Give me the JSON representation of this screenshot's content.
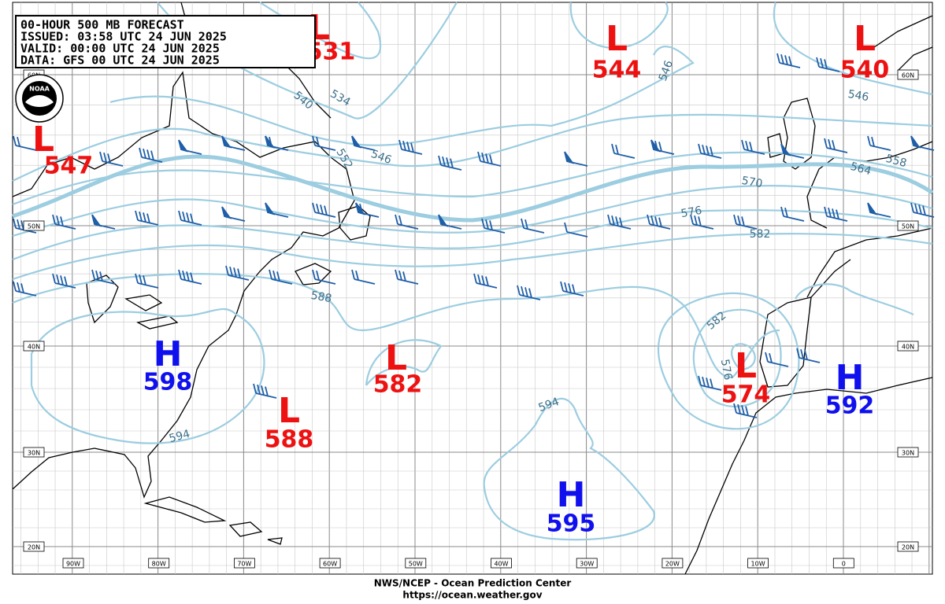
{
  "header": {
    "lines": [
      "00-HOUR 500 MB FORECAST",
      "ISSUED: 03:58 UTC 24 JUN 2025",
      "VALID:  00:00 UTC 24 JUN 2025",
      "DATA:   GFS 00 UTC 24 JUN 2025"
    ]
  },
  "logo": "NOAA",
  "centers": [
    {
      "letter": "L",
      "value": "531"
    },
    {
      "letter": "L",
      "value": "544"
    },
    {
      "letter": "L",
      "value": "540"
    },
    {
      "letter": "L",
      "value": "547"
    },
    {
      "letter": "H",
      "value": "598"
    },
    {
      "letter": "L",
      "value": "582"
    },
    {
      "letter": "L",
      "value": "588"
    },
    {
      "letter": "L",
      "value": "574"
    },
    {
      "letter": "H",
      "value": "592"
    },
    {
      "letter": "H",
      "value": "595"
    }
  ],
  "contour_labels": [
    "534",
    "540",
    "546",
    "552",
    "546",
    "546",
    "558",
    "564",
    "570",
    "576",
    "582",
    "588",
    "582",
    "576",
    "594",
    "594"
  ],
  "lat_labels": [
    "60N",
    "50N",
    "40N",
    "30N",
    "20N"
  ],
  "lon_labels": [
    "90W",
    "80W",
    "70W",
    "60W",
    "50W",
    "40W",
    "30W",
    "20W",
    "10W",
    "0"
  ],
  "footer": {
    "line1": "NWS/NCEP - Ocean Prediction Center",
    "line2": "https://ocean.weather.gov"
  }
}
